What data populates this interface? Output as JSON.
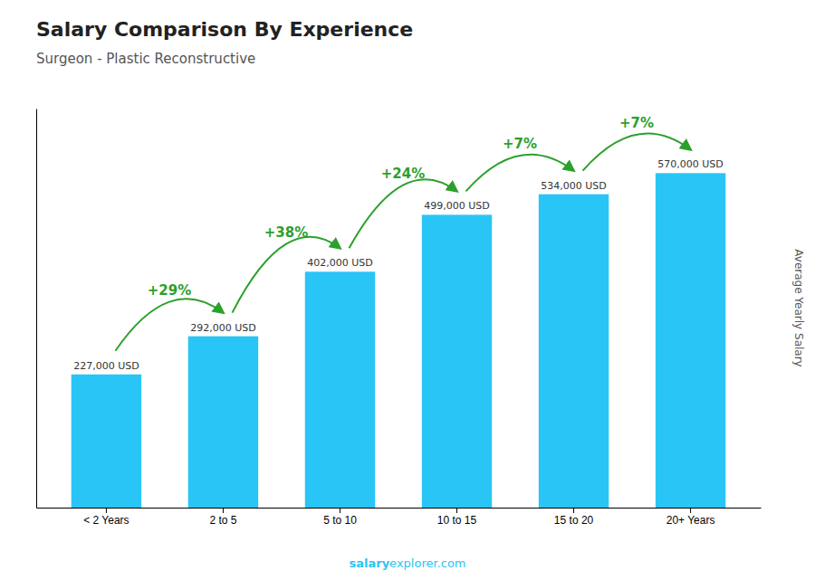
{
  "chart_data": {
    "type": "bar",
    "title": "Salary Comparison By Experience",
    "subtitle": "Surgeon - Plastic Reconstructive",
    "categories": [
      "< 2 Years",
      "2 to 5",
      "5 to 10",
      "10 to 15",
      "15 to 20",
      "20+ Years"
    ],
    "values": [
      227000,
      292000,
      402000,
      499000,
      534000,
      570000
    ],
    "value_labels": [
      "227,000 USD",
      "292,000 USD",
      "402,000 USD",
      "499,000 USD",
      "534,000 USD",
      "570,000 USD"
    ],
    "data_labels": true,
    "annotations": [
      "+29%",
      "+38%",
      "+24%",
      "+7%",
      "+7%"
    ],
    "ylabel": "Average Yearly Salary",
    "footer": [
      "salary",
      "explorer.com"
    ],
    "color": "#29c5f6",
    "ylim": [
      0,
      680000
    ],
    "tick_labels": "x",
    "grid": false
  }
}
